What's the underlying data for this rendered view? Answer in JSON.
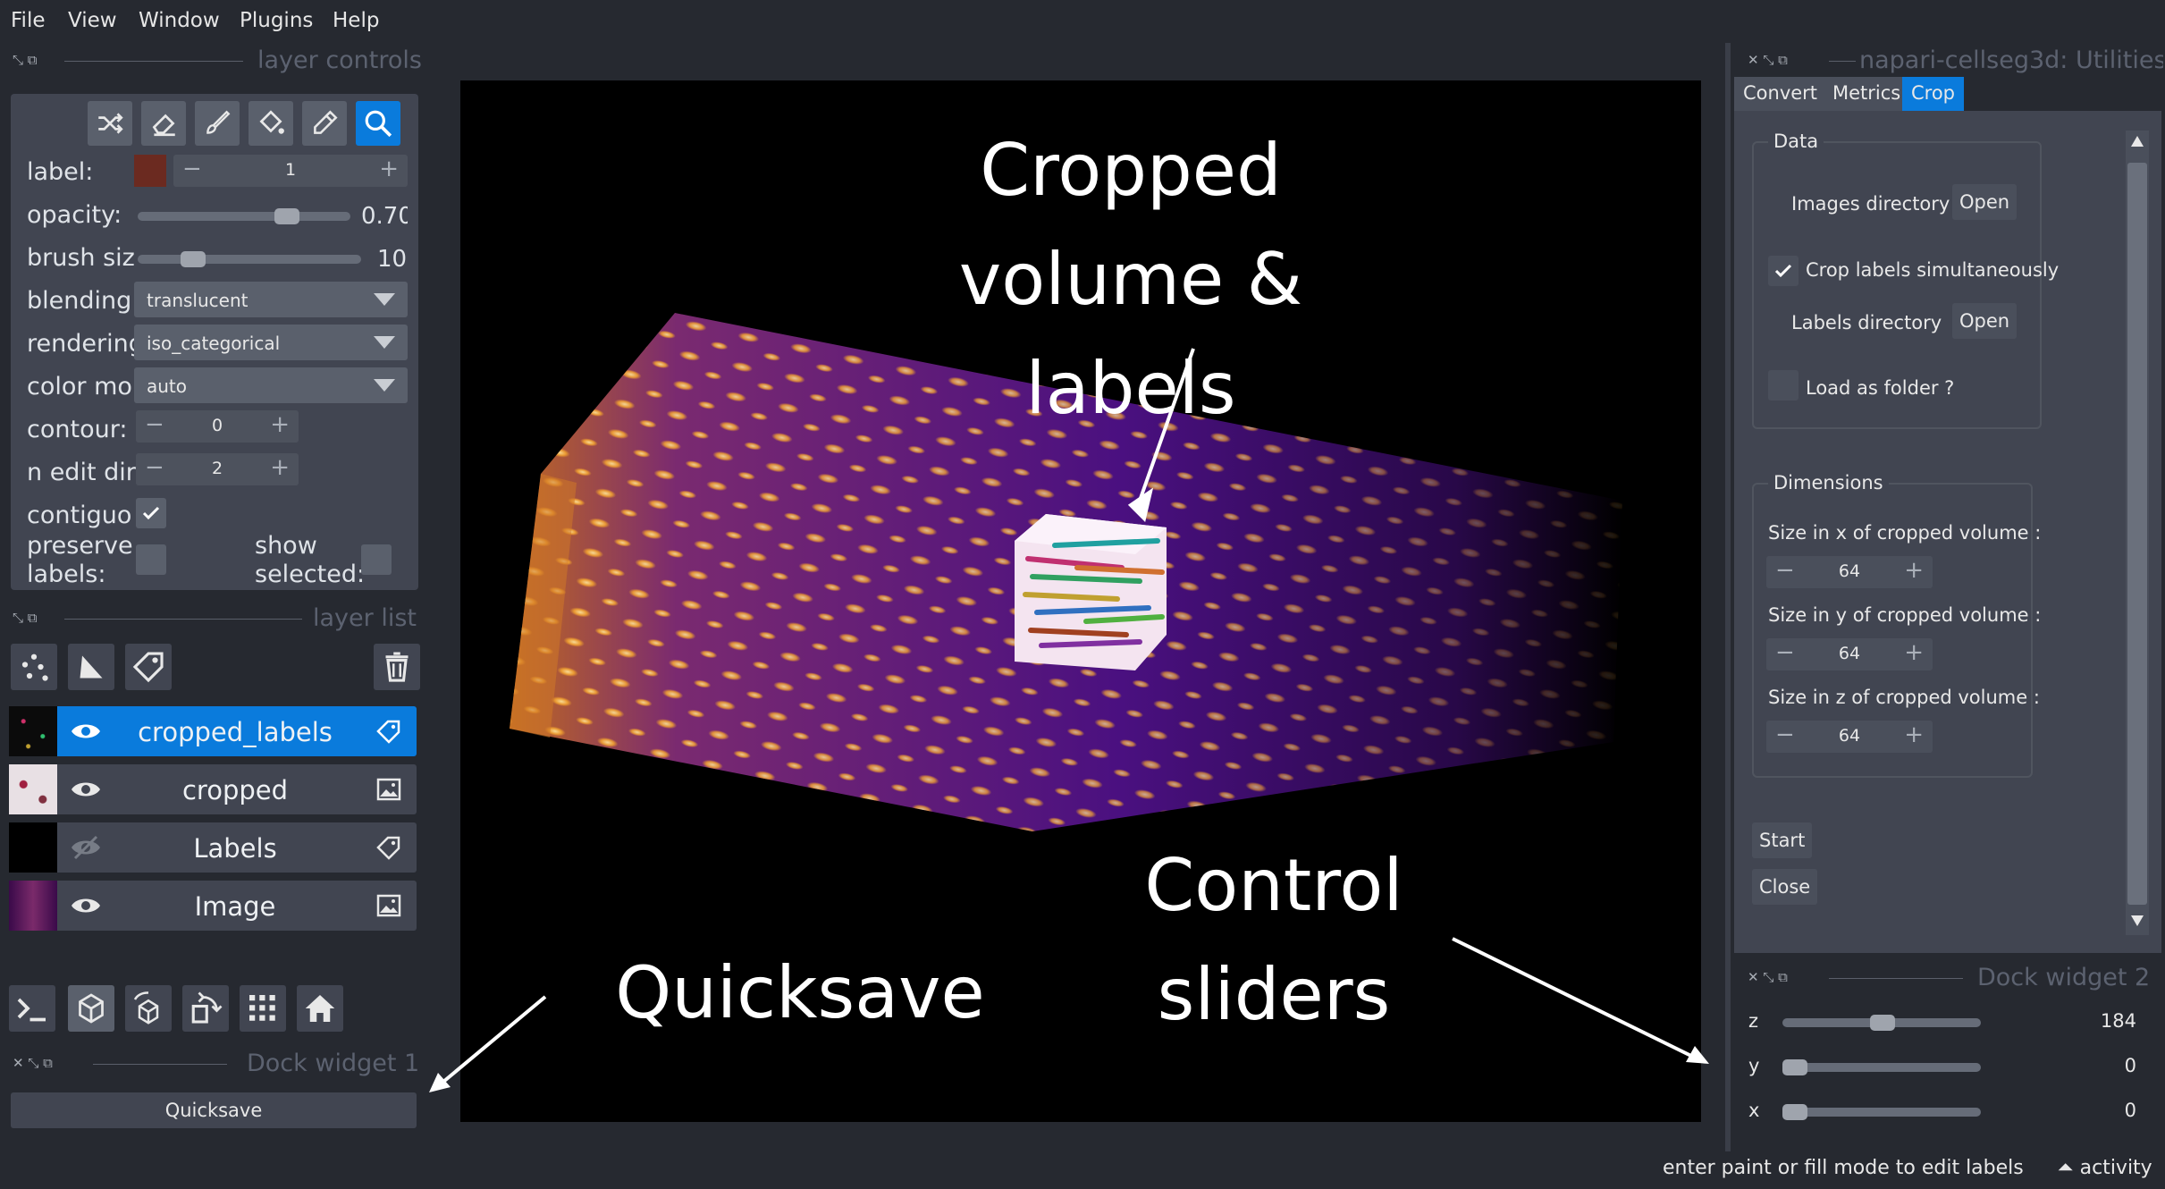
{
  "menu": [
    "File",
    "View",
    "Window",
    "Plugins",
    "Help"
  ],
  "layer_controls": {
    "title": "layer controls",
    "label_label": "label:",
    "label_value": "1",
    "label_color": "#6b2a20",
    "opacity_label": "opacity:",
    "opacity_value": "0.70",
    "opacity_level": 0.7,
    "brush_label": "brush siz",
    "brush_value": "10",
    "blending_label": "blending:",
    "blending_value": "translucent",
    "rendering_label": "rendering",
    "rendering_value": "iso_categorical",
    "color_mode_label": "color mo",
    "color_mode_value": "auto",
    "contour_label": "contour:",
    "contour_value": "0",
    "n_edit_label": "n edit dir",
    "n_edit_value": "2",
    "contiguous_label": "contiguo",
    "preserve_label": "preserve",
    "preserve_label2": "labels:",
    "show_selected_label": "show",
    "show_selected_label2": "selected:"
  },
  "layer_list": {
    "title": "layer list",
    "layers": [
      {
        "name": "cropped_labels",
        "type_icon": "tag-icon",
        "visible": true,
        "selected": true
      },
      {
        "name": "cropped",
        "type_icon": "image-icon",
        "visible": true,
        "selected": false
      },
      {
        "name": "Labels",
        "type_icon": "tag-icon",
        "visible": false,
        "selected": false
      },
      {
        "name": "Image",
        "type_icon": "image-icon",
        "visible": true,
        "selected": false
      }
    ]
  },
  "dock1": {
    "title": "Dock widget 1",
    "quicksave_label": "Quicksave"
  },
  "annotations": {
    "cropped_line1": "Cropped",
    "cropped_line2": "volume & labels",
    "quicksave": "Quicksave",
    "control_line1": "Control",
    "control_line2": "sliders"
  },
  "utilities": {
    "title": "napari-cellseg3d: Utilities",
    "tabs": [
      "Convert",
      "Metrics",
      "Crop"
    ],
    "active_tab": "Crop",
    "data_group": "Data",
    "images_dir": "Images directory",
    "open1": "Open",
    "crop_labels": "Crop labels simultaneously",
    "labels_dir": "Labels directory",
    "open2": "Open",
    "load_folder": "Load as folder ?",
    "dims_group": "Dimensions",
    "size_x_label": "Size in x of cropped volume :",
    "size_x": "64",
    "size_y_label": "Size in y of cropped volume :",
    "size_y": "64",
    "size_z_label": "Size in z of cropped volume :",
    "size_z": "64",
    "start": "Start",
    "close": "Close"
  },
  "dock2": {
    "title": "Dock widget 2",
    "sliders": [
      {
        "axis": "z",
        "value": "184",
        "level": 0.44
      },
      {
        "axis": "y",
        "value": "0",
        "level": 0.0
      },
      {
        "axis": "x",
        "value": "0",
        "level": 0.0
      }
    ]
  },
  "status": {
    "message": "enter paint or fill mode to edit labels",
    "activity": "activity"
  }
}
